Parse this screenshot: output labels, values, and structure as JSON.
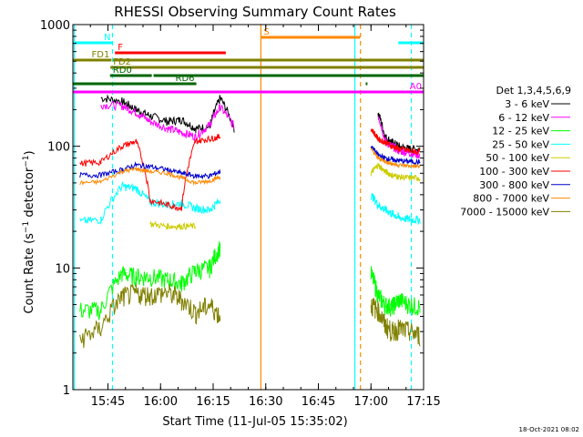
{
  "chart_data": {
    "type": "line",
    "title": "RHESSI Observing Summary Count Rates",
    "xlabel": "Start Time (11-Jul-05 15:35:02)",
    "ylabel": "Count Rate (s⁻¹ detector⁻¹)",
    "ylabel_parts": {
      "base": "Count Rate (s",
      "sup1": "−1",
      "mid": " detector",
      "sup2": "−1",
      "end": ")"
    },
    "yscale": "log",
    "ylim": [
      1,
      1000
    ],
    "xlim_minutes": [
      35,
      135
    ],
    "x_ticks": [
      {
        "label": "15:45",
        "minute": 45
      },
      {
        "label": "16:00",
        "minute": 60
      },
      {
        "label": "16:15",
        "minute": 75
      },
      {
        "label": "16:30",
        "minute": 90
      },
      {
        "label": "16:45",
        "minute": 105
      },
      {
        "label": "17:00",
        "minute": 120
      },
      {
        "label": "17:15",
        "minute": 135
      }
    ],
    "y_ticks": [
      {
        "label": "1",
        "value": 1
      },
      {
        "label": "10",
        "value": 10
      },
      {
        "label": "100",
        "value": 100
      },
      {
        "label": "1000",
        "value": 1000
      }
    ],
    "legend_title": "Det 1,3,4,5,6,9",
    "legend_position": "right",
    "timestamp": "18-Oct-2021 08:02",
    "series": [
      {
        "name": "3 - 6 keV",
        "color": "#000000",
        "values": [
          null,
          250,
          235,
          200,
          178,
          160,
          165,
          140,
          145,
          250,
          140,
          null,
          190,
          120,
          108,
          100,
          95,
          95
        ],
        "noise": 0.08
      },
      {
        "name": "6 - 12 keV",
        "color": "#ff00ff",
        "values": [
          null,
          220,
          215,
          190,
          160,
          140,
          130,
          120,
          150,
          210,
          145,
          null,
          180,
          110,
          100,
          92,
          88,
          85
        ],
        "noise": 0.08
      },
      {
        "name": "12 - 25 keV",
        "color": "#00ff00",
        "values": [
          4.5,
          4.5,
          9.0,
          8.5,
          8.5,
          8.0,
          7.5,
          9.5,
          10,
          15,
          null,
          9,
          6.0,
          5.0,
          4.8,
          5.5,
          5.0,
          4.8
        ],
        "noise": 0.18
      },
      {
        "name": "25 - 50 keV",
        "color": "#00ffff",
        "values": [
          24,
          25,
          47,
          45,
          35,
          33,
          34,
          31,
          30,
          36,
          null,
          40,
          33,
          30,
          28,
          26,
          25,
          25
        ],
        "noise": 0.08
      },
      {
        "name": "50 - 100 keV",
        "color": "#cccc00",
        "values": [
          null,
          null,
          null,
          null,
          23,
          22,
          22,
          22,
          null,
          null,
          null,
          60,
          70,
          62,
          58,
          56,
          55,
          55
        ],
        "noise": 0.06
      },
      {
        "name": "100 - 300 keV",
        "color": "#ff0000",
        "values": [
          72,
          74,
          100,
          110,
          36,
          33,
          31,
          110,
          115,
          120,
          null,
          140,
          115,
          108,
          100,
          95,
          92,
          90
        ],
        "noise": 0.06
      },
      {
        "name": "300 - 800 keV",
        "color": "#0000cc",
        "values": [
          58,
          58,
          64,
          70,
          68,
          64,
          60,
          57,
          57,
          62,
          null,
          100,
          85,
          80,
          78,
          76,
          75,
          74
        ],
        "noise": 0.05
      },
      {
        "name": "800 - 7000 keV",
        "color": "#ff8800",
        "values": [
          50,
          51,
          62,
          65,
          62,
          60,
          55,
          50,
          52,
          56,
          null,
          95,
          80,
          75,
          72,
          70,
          69,
          68
        ],
        "noise": 0.04
      },
      {
        "name": "7000 - 15000 keV",
        "color": "#808000",
        "values": [
          2.6,
          3.2,
          5.8,
          6.2,
          6.0,
          6.3,
          5.5,
          4.3,
          5.0,
          4.0,
          null,
          5,
          4.5,
          3.4,
          3.0,
          3.2,
          3.0,
          2.8
        ],
        "noise": 0.2
      }
    ],
    "x_minutes": [
      37,
      43,
      49,
      53,
      57,
      62,
      66,
      70,
      74,
      77,
      81,
      120,
      122,
      124,
      126,
      128,
      131,
      134
    ],
    "state_bars": [
      {
        "label": "N",
        "color": "#00ffff",
        "segments": [
          [
            35,
            46.3
          ],
          [
            127.8,
            135
          ]
        ],
        "level": 47
      },
      {
        "label": "S",
        "color": "#ff8800",
        "segments": [
          [
            88.6,
            116.9
          ]
        ],
        "level": 41
      },
      {
        "label": "F",
        "color": "#ff0000",
        "segments": [
          [
            47.0,
            78.6
          ]
        ],
        "level": 58
      },
      {
        "label": "FD1",
        "color": "#808000",
        "segments": [
          [
            35,
            46.0
          ],
          [
            46.4,
            135
          ]
        ],
        "level": 66
      },
      {
        "label": "FD2",
        "color": "#808000",
        "segments": [
          [
            45.7,
            135
          ]
        ],
        "level": 74
      },
      {
        "label": "RD0",
        "color": "#006600",
        "segments": [
          [
            45.6,
            57.5
          ],
          [
            58.0,
            135
          ]
        ],
        "level": 83
      },
      {
        "label": "RD6",
        "color": "#006600",
        "segments": [
          [
            35,
            70.2
          ],
          [
            118.5,
            119.0
          ]
        ],
        "level": 92
      },
      {
        "label": "A0",
        "color": "#ff00ff",
        "segments": [
          [
            35,
            135
          ]
        ],
        "level": 101
      }
    ],
    "vertical_lines": [
      {
        "minute": 35.4,
        "color": "#00ffff",
        "style": "solid"
      },
      {
        "minute": 46.3,
        "color": "#00ffff",
        "style": "dashed"
      },
      {
        "minute": 88.6,
        "color": "#ff8800",
        "style": "solid"
      },
      {
        "minute": 115.4,
        "color": "#00ffff",
        "style": "solid"
      },
      {
        "minute": 117.0,
        "color": "#ff8800",
        "style": "dashed"
      },
      {
        "minute": 131.5,
        "color": "#00ffff",
        "style": "dashed"
      }
    ]
  }
}
